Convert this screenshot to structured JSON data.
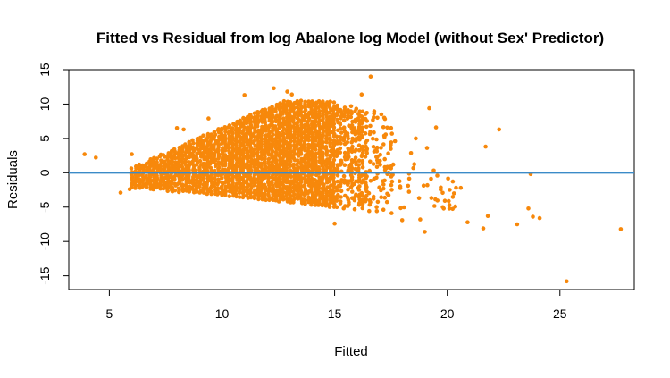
{
  "chart_data": {
    "type": "scatter",
    "title": "Fitted vs Residual from log Abalone log Model (without Sex' Predictor)",
    "xlabel": "Fitted",
    "ylabel": "Residuals",
    "xlim": [
      3.2,
      28.3
    ],
    "ylim": [
      -17.0,
      15.0
    ],
    "x_ticks": [
      5,
      10,
      15,
      20,
      25
    ],
    "y_ticks": [
      -15,
      -10,
      -5,
      0,
      5,
      10,
      15
    ],
    "grid": false,
    "legend": "none",
    "point_color": "#f7880b",
    "reference_line": {
      "y": 0,
      "color": "#3b8bc8"
    },
    "outliers": [
      [
        3.9,
        2.7
      ],
      [
        4.4,
        2.2
      ],
      [
        5.5,
        -2.9
      ],
      [
        5.9,
        -2.4
      ],
      [
        6.0,
        2.7
      ],
      [
        12.3,
        12.3
      ],
      [
        12.9,
        11.8
      ],
      [
        13.1,
        11.4
      ],
      [
        14.0,
        10.4
      ],
      [
        11.0,
        11.3
      ],
      [
        16.2,
        11.4
      ],
      [
        16.6,
        14.0
      ],
      [
        15.0,
        -7.4
      ],
      [
        19.2,
        9.4
      ],
      [
        19.5,
        6.6
      ],
      [
        20.9,
        -7.2
      ],
      [
        21.6,
        -8.1
      ],
      [
        21.8,
        -6.3
      ],
      [
        21.7,
        3.8
      ],
      [
        22.3,
        6.3
      ],
      [
        23.1,
        -7.5
      ],
      [
        23.6,
        -5.2
      ],
      [
        23.7,
        -0.2
      ],
      [
        23.8,
        -6.4
      ],
      [
        24.1,
        -6.6
      ],
      [
        25.3,
        -15.8
      ],
      [
        27.7,
        -8.2
      ],
      [
        19.8,
        -5.0
      ],
      [
        20.3,
        -3.0
      ],
      [
        20.6,
        -2.2
      ],
      [
        18.8,
        -6.8
      ],
      [
        19.0,
        -8.6
      ],
      [
        18.6,
        5.0
      ],
      [
        17.2,
        8.0
      ],
      [
        18.0,
        -6.9
      ],
      [
        17.6,
        1.2
      ],
      [
        16.9,
        8.0
      ],
      [
        8.0,
        6.5
      ],
      [
        8.3,
        6.3
      ],
      [
        9.4,
        7.9
      ],
      [
        19.1,
        3.6
      ]
    ]
  }
}
